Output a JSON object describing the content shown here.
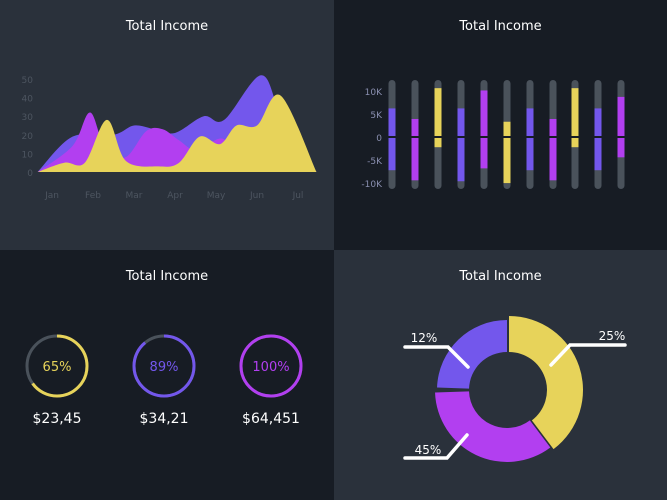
{
  "colors": {
    "purple": "#7357ec",
    "magenta": "#b23ff0",
    "yellow": "#e7d35a",
    "track": "#4a525b",
    "axis": "#4d5560"
  },
  "chart_data": [
    {
      "type": "area",
      "title": "Total Income",
      "categories": [
        "Jan",
        "Feb",
        "Mar",
        "Apr",
        "May",
        "Jun",
        "Jul"
      ],
      "yticks": [
        "0",
        "10",
        "20",
        "30",
        "40",
        "50"
      ],
      "ylim": [
        0,
        50
      ],
      "grid": false,
      "series": [
        {
          "color": "#7357ec",
          "points": [
            [
              -0.35,
              0
            ],
            [
              0.5,
              19
            ],
            [
              1.5,
              20
            ],
            [
              2,
              25
            ],
            [
              2.5,
              23
            ],
            [
              3,
              21
            ],
            [
              3.7,
              30
            ],
            [
              4.2,
              28
            ],
            [
              5.1,
              52
            ],
            [
              5.6,
              30
            ],
            [
              6.45,
              0
            ]
          ]
        },
        {
          "color": "#b23ff0",
          "points": [
            [
              -0.35,
              0
            ],
            [
              0.5,
              14
            ],
            [
              0.93,
              32
            ],
            [
              1.3,
              12
            ],
            [
              1.8,
              8
            ],
            [
              2.3,
              22
            ],
            [
              2.7,
              23
            ],
            [
              3.1,
              17
            ],
            [
              3.5,
              12
            ],
            [
              4.1,
              18
            ],
            [
              4.4,
              14
            ],
            [
              5,
              10
            ],
            [
              6.45,
              0
            ]
          ]
        },
        {
          "color": "#e7d35a",
          "points": [
            [
              -0.35,
              0
            ],
            [
              0.3,
              5
            ],
            [
              0.8,
              5
            ],
            [
              1.34,
              28
            ],
            [
              1.8,
              6
            ],
            [
              2.6,
              3
            ],
            [
              3.1,
              5
            ],
            [
              3.6,
              19
            ],
            [
              4.1,
              15
            ],
            [
              4.5,
              25
            ],
            [
              5,
              25
            ],
            [
              5.58,
              41
            ],
            [
              6.45,
              0
            ]
          ]
        }
      ]
    },
    {
      "type": "bar",
      "title": "Total Income",
      "yticks": [
        "10K",
        "5K",
        "0",
        "-5K",
        "-10K"
      ],
      "ylim": [
        -11,
        11
      ],
      "series": [
        {
          "positive": 6,
          "negative": -7,
          "color": "#7357ec"
        },
        {
          "positive": 3.7,
          "negative": -9.2,
          "color": "#b23ff0"
        },
        {
          "positive": 10.4,
          "negative": -2,
          "color": "#e7d35a"
        },
        {
          "positive": 6,
          "negative": -9.4,
          "color": "#7357ec"
        },
        {
          "positive": 9.9,
          "negative": -6.6,
          "color": "#b23ff0"
        },
        {
          "positive": 3.1,
          "negative": -9.8,
          "color": "#e7d35a"
        },
        {
          "positive": 6,
          "negative": -7,
          "color": "#7357ec"
        },
        {
          "positive": 3.7,
          "negative": -9.2,
          "color": "#b23ff0"
        },
        {
          "positive": 10.4,
          "negative": -2,
          "color": "#e7d35a"
        },
        {
          "positive": 6,
          "negative": -7,
          "color": "#7357ec"
        },
        {
          "positive": 8.5,
          "negative": -4.2,
          "color": "#b23ff0"
        }
      ]
    },
    {
      "type": "gauge",
      "title": "Total Income",
      "items": [
        {
          "percent": 65,
          "label": "65%",
          "amount": "$23,45",
          "color": "#e7d35a"
        },
        {
          "percent": 89,
          "label": "89%",
          "amount": "$34,21",
          "color": "#7357ec"
        },
        {
          "percent": 100,
          "label": "100%",
          "amount": "$64,451",
          "color": "#b23ff0"
        }
      ]
    },
    {
      "type": "pie",
      "title": "Total Income",
      "slices": [
        {
          "label": "25%",
          "value": 25,
          "color": "#e7d35a"
        },
        {
          "label": "45%",
          "value": 45,
          "color": "#b23ff0"
        },
        {
          "label": "12%",
          "value": 12,
          "color": "#7357ec"
        }
      ]
    }
  ]
}
